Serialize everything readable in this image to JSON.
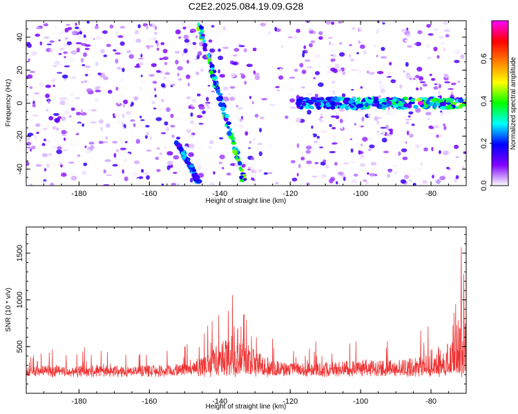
{
  "title": "C2E2.2025.084.19.09.G28",
  "chart_data": [
    {
      "type": "heatmap",
      "xlabel": "Height of straight line (km)",
      "ylabel": "Frequency (Hz)",
      "xlim": [
        -195,
        -70
      ],
      "ylim": [
        -50,
        50
      ],
      "xticks": [
        -180,
        -160,
        -140,
        -120,
        -100,
        -80
      ],
      "xtick_labels": [
        "-180",
        "-160",
        "-140",
        "-120",
        "-100",
        "-80"
      ],
      "yticks": [
        -40,
        -20,
        0,
        20,
        40
      ],
      "ytick_labels": [
        "-40",
        "-20",
        "0",
        "20",
        "40"
      ],
      "colorbar": {
        "label": "Normalized spectral amplitude",
        "range": [
          0,
          0.78
        ],
        "ticks": [
          0.0,
          0.2,
          0.4,
          0.6
        ],
        "tick_labels": [
          "0.0",
          "0.2",
          "0.4",
          "0.6"
        ],
        "colormap": [
          "#ffffff",
          "#8000ff",
          "#0000ff",
          "#00ffff",
          "#00ff00",
          "#ffff00",
          "#ff8000",
          "#ff0000",
          "#ff00ff"
        ]
      },
      "features": [
        {
          "name": "diagonal streak",
          "x_start": -146,
          "y_start": 48,
          "x_end": -133,
          "y_end": -48,
          "peak": 0.45
        },
        {
          "name": "diagonal streak lower",
          "x_start": -152,
          "y_start": -24,
          "x_end": -146,
          "y_end": -48,
          "peak": 0.3
        },
        {
          "name": "horizontal band",
          "x_start": -118,
          "x_end": -70,
          "y": 0,
          "peak": 0.78
        }
      ],
      "grid": false,
      "legend": "none"
    },
    {
      "type": "line",
      "xlabel": "Height of straight line (km)",
      "ylabel": "SNR (10 * v/v)",
      "xlim": [
        -195,
        -70
      ],
      "ylim": [
        0,
        1780
      ],
      "xticks": [
        -180,
        -160,
        -140,
        -120,
        -100,
        -80
      ],
      "xtick_labels": [
        "-180",
        "-160",
        "-140",
        "-120",
        "-100",
        "-80"
      ],
      "yticks": [
        500,
        1000,
        1500
      ],
      "ytick_labels": [
        "500",
        "1000",
        "1500"
      ],
      "series": [
        {
          "color": "#ee3333",
          "x": [
            -195,
            -190,
            -185,
            -180,
            -175,
            -170,
            -165,
            -160,
            -155,
            -150,
            -148,
            -146,
            -144,
            -142,
            -140,
            -138,
            -136,
            -134,
            -132,
            -130,
            -128,
            -125,
            -120,
            -115,
            -110,
            -105,
            -100,
            -95,
            -90,
            -85,
            -82,
            -80,
            -78,
            -76,
            -74,
            -72,
            -71,
            -70
          ],
          "values": [
            280,
            300,
            310,
            300,
            300,
            300,
            290,
            300,
            300,
            320,
            340,
            380,
            460,
            500,
            520,
            620,
            780,
            750,
            560,
            480,
            420,
            360,
            330,
            320,
            340,
            350,
            360,
            350,
            360,
            380,
            420,
            470,
            500,
            520,
            560,
            800,
            1250,
            1100
          ]
        }
      ],
      "grid": false,
      "legend": "none"
    }
  ]
}
